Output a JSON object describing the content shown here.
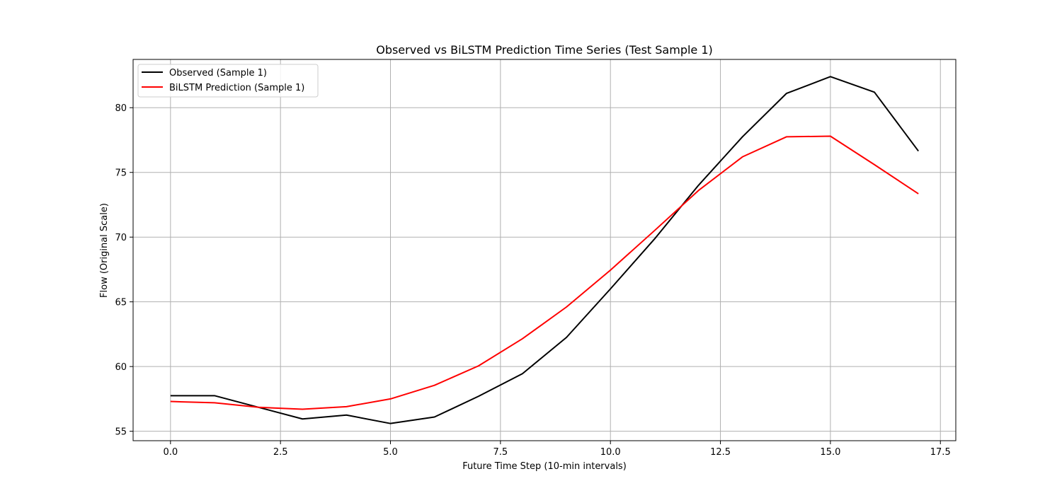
{
  "chart_data": {
    "type": "line",
    "title": "Observed vs BiLSTM Prediction Time Series (Test Sample 1)",
    "xlabel": "Future Time Step (10-min intervals)",
    "ylabel": "Flow (Original Scale)",
    "xlim": [
      -0.85,
      17.85
    ],
    "ylim": [
      54.27,
      83.73
    ],
    "xticks": [
      0.0,
      2.5,
      5.0,
      7.5,
      10.0,
      12.5,
      15.0,
      17.5
    ],
    "xtick_labels": [
      "0.0",
      "2.5",
      "5.0",
      "7.5",
      "10.0",
      "12.5",
      "15.0",
      "17.5"
    ],
    "yticks": [
      55,
      60,
      65,
      70,
      75,
      80
    ],
    "ytick_labels": [
      "55",
      "60",
      "65",
      "70",
      "75",
      "80"
    ],
    "grid": true,
    "legend_position": "top-left",
    "x": [
      0,
      1,
      2,
      3,
      4,
      5,
      6,
      7,
      8,
      9,
      10,
      11,
      12,
      13,
      14,
      15,
      16,
      17
    ],
    "series": [
      {
        "name": "Observed (Sample 1)",
        "color": "#000000",
        "values": [
          57.75,
          57.75,
          56.85,
          55.95,
          56.25,
          55.6,
          56.1,
          57.7,
          59.45,
          62.25,
          66.0,
          69.85,
          74.0,
          77.75,
          81.1,
          82.4,
          81.2,
          76.65
        ]
      },
      {
        "name": "BiLSTM Prediction (Sample 1)",
        "color": "#ff0000",
        "values": [
          57.3,
          57.2,
          56.85,
          56.7,
          56.9,
          57.5,
          58.55,
          60.05,
          62.15,
          64.6,
          67.45,
          70.5,
          73.6,
          76.2,
          77.75,
          77.8,
          75.6,
          73.35
        ]
      }
    ]
  }
}
